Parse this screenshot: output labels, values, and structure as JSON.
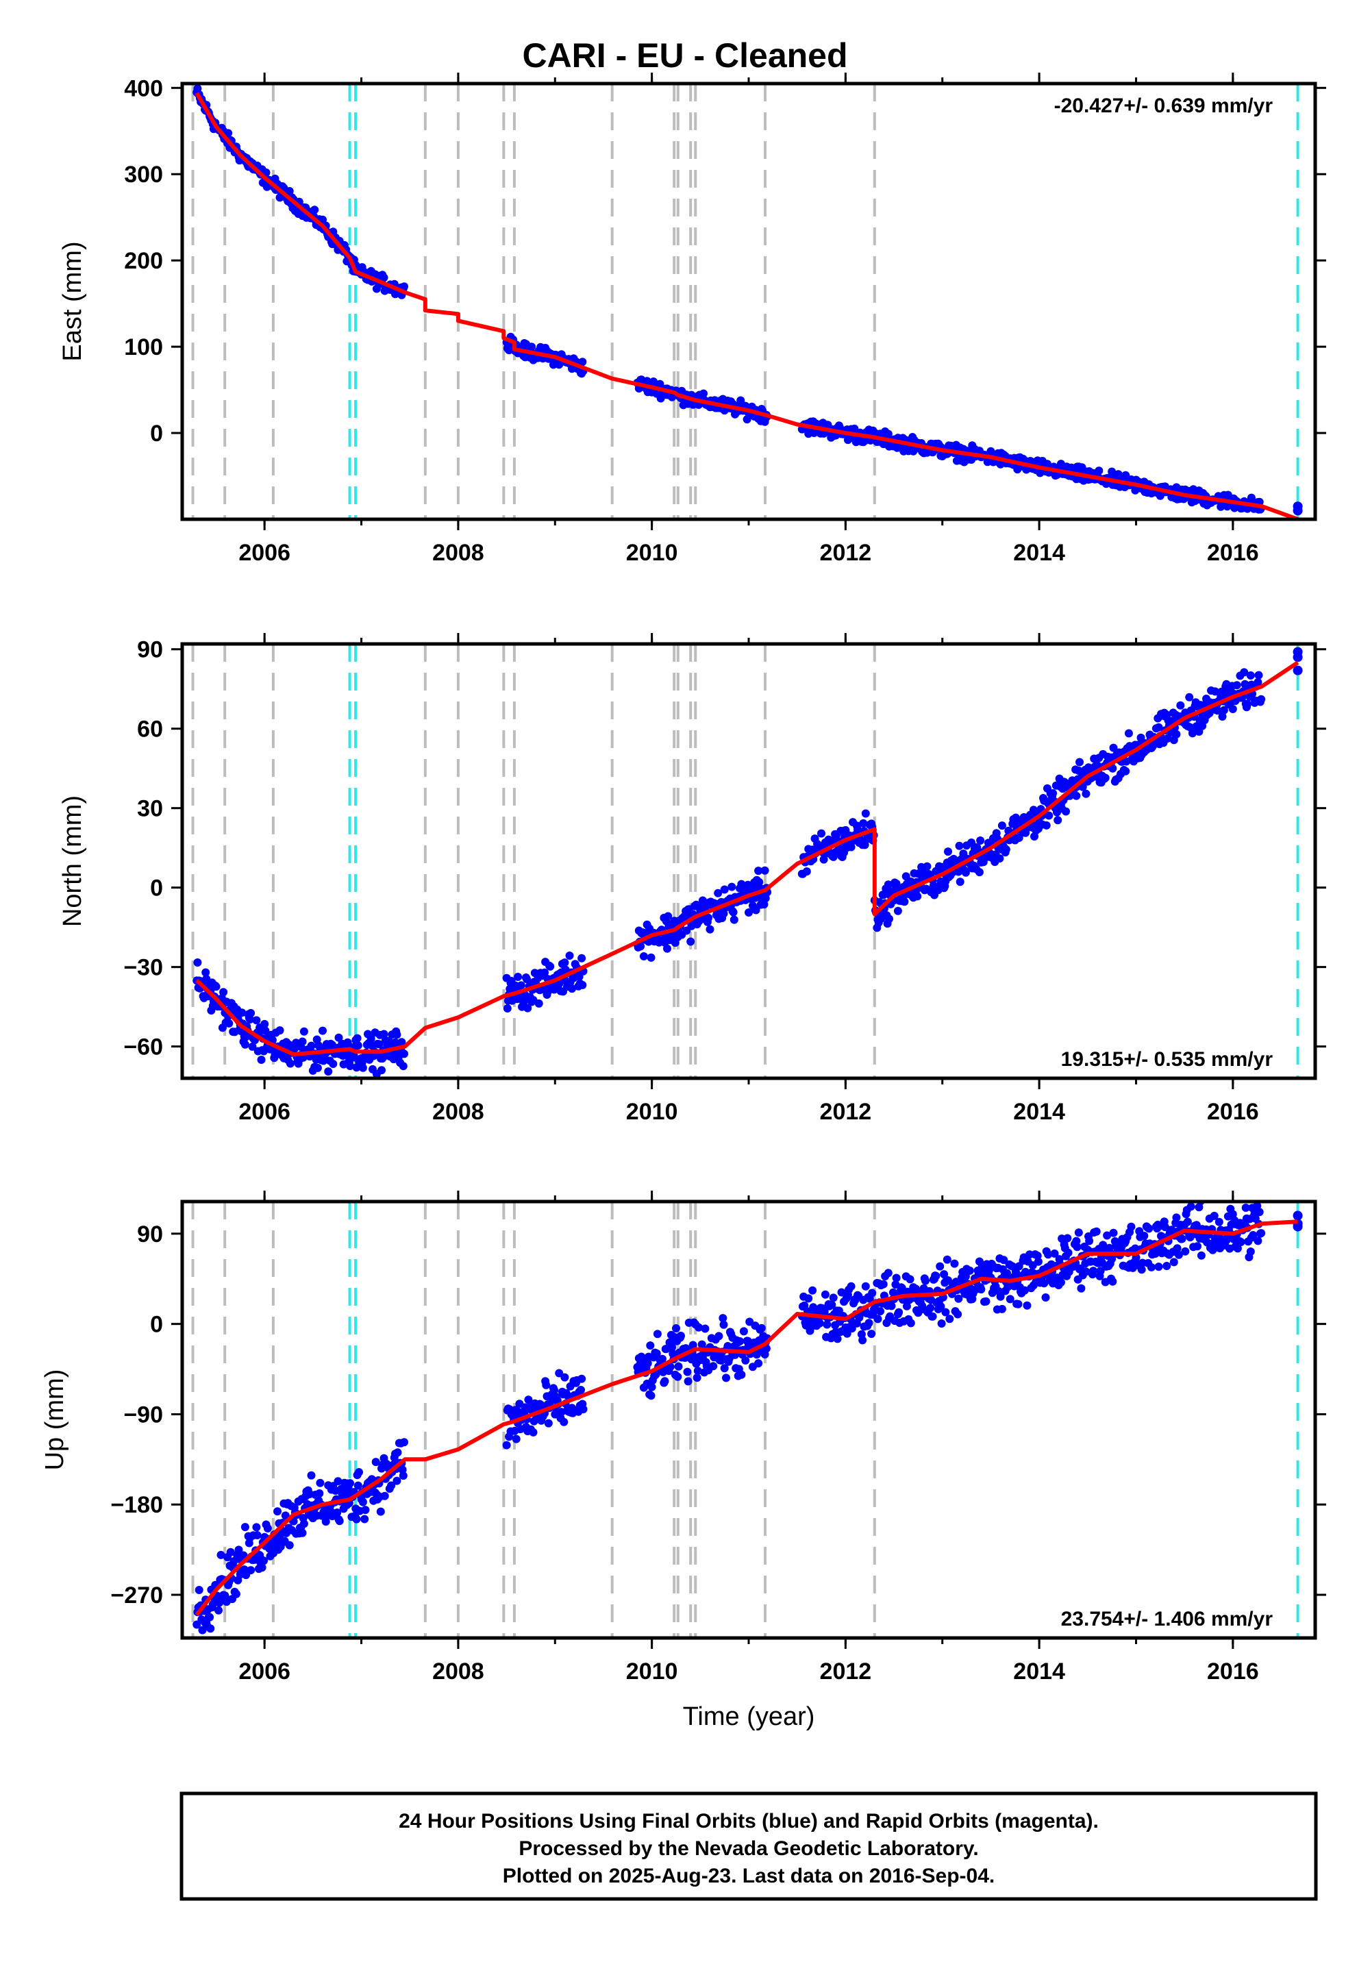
{
  "colors": {
    "final_orbits": "#0000ff",
    "rapid_orbits": "#ff00ff",
    "model": "#ff0000",
    "equipment_change": "#bdbdbd",
    "earthquake": "#33e6e6",
    "frame": "#000000"
  },
  "title": "CARI  - EU - Cleaned",
  "xlabel": "Time (year)",
  "footer": {
    "line1": "24 Hour Positions Using Final Orbits (blue) and Rapid Orbits (magenta).",
    "line2": "Processed by the Nevada Geodetic Laboratory.",
    "line3": "Plotted on 2025-Aug-23. Last data on 2016-Sep-04."
  },
  "chart_data": [
    {
      "type": "scatter",
      "component": "east",
      "ylabel": "East (mm)",
      "rate_label": "-20.427+/- 0.639 mm/yr",
      "rate_position": "top-right",
      "xlim": [
        2005.15,
        2016.85
      ],
      "ylim": [
        -100,
        405
      ],
      "xticks": [
        2006,
        2008,
        2010,
        2012,
        2014,
        2016
      ],
      "xtick_labels": [
        "2006",
        "2008",
        "2010",
        "2012",
        "2014",
        "2016"
      ],
      "yticks": [
        400,
        300,
        200,
        100,
        0
      ],
      "ytick_labels": [
        "400",
        "300",
        "200",
        "100",
        "0"
      ],
      "equipment_changes": [
        2005.26,
        2005.59,
        2006.09,
        2007.66,
        2008.0,
        2008.47,
        2008.58,
        2009.59,
        2010.23,
        2010.27,
        2010.4,
        2010.45,
        2011.17,
        2012.3
      ],
      "earthquakes": [
        2006.88,
        2006.94,
        2016.67
      ],
      "data_segments": [
        [
          2005.3,
          2007.45
        ],
        [
          2008.5,
          2009.3
        ],
        [
          2009.85,
          2011.2
        ],
        [
          2011.55,
          2016.3
        ]
      ],
      "extra_points": [
        [
          2016.67,
          -85
        ],
        [
          2016.67,
          -90
        ]
      ],
      "model": [
        [
          2005.3,
          394
        ],
        [
          2005.5,
          355
        ],
        [
          2005.75,
          322
        ],
        [
          2006.0,
          296
        ],
        [
          2006.3,
          268
        ],
        [
          2006.6,
          240
        ],
        [
          2006.88,
          203
        ],
        [
          2006.94,
          187
        ],
        [
          2007.2,
          175
        ],
        [
          2007.45,
          163
        ],
        [
          2007.66,
          155
        ],
        [
          2007.66,
          142
        ],
        [
          2008.0,
          138
        ],
        [
          2008.0,
          130
        ],
        [
          2008.47,
          118
        ],
        [
          2008.47,
          110
        ],
        [
          2008.58,
          105
        ],
        [
          2008.58,
          97
        ],
        [
          2009.0,
          88
        ],
        [
          2009.59,
          63
        ],
        [
          2010.0,
          53
        ],
        [
          2010.23,
          47
        ],
        [
          2010.27,
          44
        ],
        [
          2010.45,
          38
        ],
        [
          2011.0,
          26
        ],
        [
          2011.17,
          21
        ],
        [
          2011.5,
          10
        ],
        [
          2012.0,
          0
        ],
        [
          2012.3,
          -5
        ],
        [
          2013.0,
          -20
        ],
        [
          2013.5,
          -28
        ],
        [
          2014.0,
          -40
        ],
        [
          2014.5,
          -50
        ],
        [
          2015.0,
          -60
        ],
        [
          2015.5,
          -72
        ],
        [
          2016.0,
          -80
        ],
        [
          2016.3,
          -85
        ],
        [
          2016.67,
          -100
        ]
      ]
    },
    {
      "type": "scatter",
      "component": "north",
      "ylabel": "North (mm)",
      "rate_label": "19.315+/- 0.535 mm/yr",
      "rate_position": "bottom-right",
      "xlim": [
        2005.15,
        2016.85
      ],
      "ylim": [
        -72,
        92
      ],
      "xticks": [
        2006,
        2008,
        2010,
        2012,
        2014,
        2016
      ],
      "xtick_labels": [
        "2006",
        "2008",
        "2010",
        "2012",
        "2014",
        "2016"
      ],
      "yticks": [
        90,
        60,
        30,
        0,
        -30,
        -60
      ],
      "ytick_labels": [
        "90",
        "60",
        "30",
        "0",
        "−30",
        "−60"
      ],
      "equipment_changes": [
        2005.26,
        2005.59,
        2006.09,
        2007.66,
        2008.0,
        2008.47,
        2008.58,
        2009.59,
        2010.23,
        2010.27,
        2010.4,
        2010.45,
        2011.17,
        2012.3
      ],
      "earthquakes": [
        2006.88,
        2006.94,
        2016.67
      ],
      "data_segments": [
        [
          2005.3,
          2007.45
        ],
        [
          2008.5,
          2009.3
        ],
        [
          2009.85,
          2011.2
        ],
        [
          2011.55,
          2016.3
        ]
      ],
      "extra_points": [
        [
          2016.67,
          89
        ],
        [
          2016.67,
          87
        ],
        [
          2016.67,
          82
        ]
      ],
      "model": [
        [
          2005.3,
          -35
        ],
        [
          2005.5,
          -42
        ],
        [
          2005.75,
          -52
        ],
        [
          2006.0,
          -58
        ],
        [
          2006.3,
          -63
        ],
        [
          2006.6,
          -62
        ],
        [
          2006.88,
          -61
        ],
        [
          2006.94,
          -62
        ],
        [
          2007.2,
          -62
        ],
        [
          2007.45,
          -60
        ],
        [
          2007.66,
          -53
        ],
        [
          2008.0,
          -49
        ],
        [
          2008.47,
          -41
        ],
        [
          2008.58,
          -40
        ],
        [
          2009.0,
          -35
        ],
        [
          2009.59,
          -25
        ],
        [
          2010.0,
          -18
        ],
        [
          2010.23,
          -16
        ],
        [
          2010.27,
          -15
        ],
        [
          2010.45,
          -11
        ],
        [
          2011.0,
          -3
        ],
        [
          2011.17,
          -1
        ],
        [
          2011.5,
          9
        ],
        [
          2012.0,
          18
        ],
        [
          2012.3,
          22
        ],
        [
          2012.3,
          -10
        ],
        [
          2012.5,
          -3
        ],
        [
          2013.0,
          5
        ],
        [
          2013.5,
          15
        ],
        [
          2014.0,
          27
        ],
        [
          2014.5,
          42
        ],
        [
          2015.0,
          52
        ],
        [
          2015.5,
          64
        ],
        [
          2016.0,
          72
        ],
        [
          2016.3,
          76
        ],
        [
          2016.67,
          85
        ]
      ]
    },
    {
      "type": "scatter",
      "component": "up",
      "ylabel": "Up (mm)",
      "rate_label": "23.754+/- 1.406 mm/yr",
      "rate_position": "bottom-right",
      "xlim": [
        2005.15,
        2016.85
      ],
      "ylim": [
        -313,
        122
      ],
      "xticks": [
        2006,
        2008,
        2010,
        2012,
        2014,
        2016
      ],
      "xtick_labels": [
        "2006",
        "2008",
        "2010",
        "2012",
        "2014",
        "2016"
      ],
      "yticks": [
        90,
        0,
        -90,
        -180,
        -270
      ],
      "ytick_labels": [
        "90",
        "0",
        "−90",
        "−180",
        "−270"
      ],
      "equipment_changes": [
        2005.26,
        2005.59,
        2006.09,
        2007.66,
        2008.0,
        2008.47,
        2008.58,
        2009.59,
        2010.23,
        2010.27,
        2010.4,
        2010.45,
        2011.17,
        2012.3
      ],
      "earthquakes": [
        2006.88,
        2006.94,
        2016.67
      ],
      "data_segments": [
        [
          2005.3,
          2007.45
        ],
        [
          2008.5,
          2009.3
        ],
        [
          2009.85,
          2011.2
        ],
        [
          2011.55,
          2016.3
        ]
      ],
      "extra_points": [
        [
          2016.67,
          108
        ],
        [
          2016.67,
          100
        ],
        [
          2016.67,
          97
        ]
      ],
      "model": [
        [
          2005.3,
          -290
        ],
        [
          2005.5,
          -265
        ],
        [
          2005.75,
          -240
        ],
        [
          2006.0,
          -218
        ],
        [
          2006.3,
          -190
        ],
        [
          2006.6,
          -180
        ],
        [
          2006.88,
          -175
        ],
        [
          2007.2,
          -155
        ],
        [
          2007.45,
          -135
        ],
        [
          2007.66,
          -135
        ],
        [
          2008.0,
          -125
        ],
        [
          2008.47,
          -100
        ],
        [
          2008.58,
          -97
        ],
        [
          2009.0,
          -82
        ],
        [
          2009.59,
          -60
        ],
        [
          2010.0,
          -47
        ],
        [
          2010.23,
          -35
        ],
        [
          2010.45,
          -25
        ],
        [
          2011.0,
          -28
        ],
        [
          2011.17,
          -20
        ],
        [
          2011.5,
          10
        ],
        [
          2012.0,
          5
        ],
        [
          2012.3,
          22
        ],
        [
          2012.6,
          28
        ],
        [
          2013.0,
          30
        ],
        [
          2013.4,
          45
        ],
        [
          2013.7,
          43
        ],
        [
          2014.0,
          48
        ],
        [
          2014.5,
          70
        ],
        [
          2015.0,
          70
        ],
        [
          2015.5,
          93
        ],
        [
          2016.0,
          90
        ],
        [
          2016.3,
          100
        ],
        [
          2016.67,
          102
        ]
      ]
    }
  ]
}
